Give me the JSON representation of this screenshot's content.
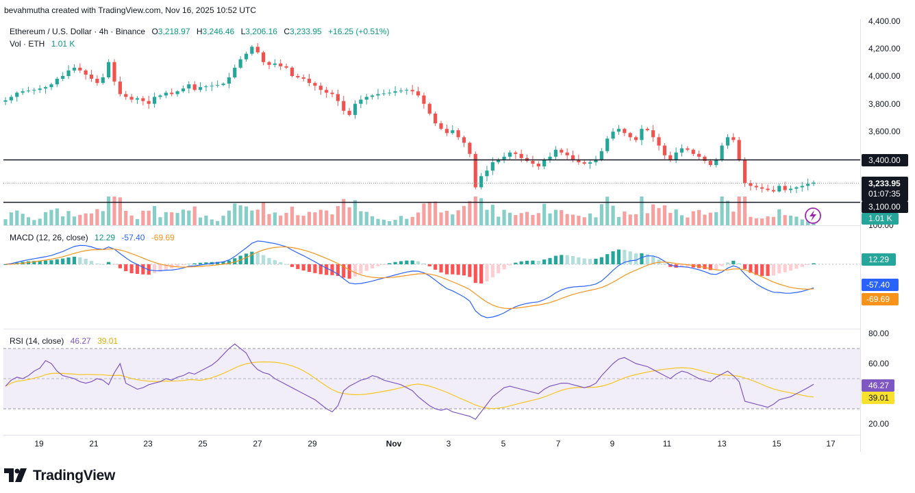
{
  "credit": "bevahmutha created with TradingView.com, Nov 16, 2025 10:52 UTC",
  "legend": {
    "symbol": "Ethereum / U.S. Dollar · 4h · Binance",
    "open_label": "O",
    "open": "3,218.97",
    "high_label": "H",
    "high": "3,246.46",
    "low_label": "L",
    "low": "3,206.16",
    "close_label": "C",
    "close": "3,233.95",
    "change": "+16.25 (+0.51%)",
    "vol_label": "Vol · ETH",
    "vol": "1.01 K"
  },
  "macd_legend": {
    "label": "MACD (12, 26, close)",
    "hist": "12.29",
    "macd": "-57.40",
    "signal": "-69.69"
  },
  "rsi_legend": {
    "label": "RSI (14, close)",
    "rsi": "46.27",
    "ma": "39.01"
  },
  "price_axis": {
    "ticks": [
      "4,400.00",
      "4,200.00",
      "4,000.00",
      "3,800.00",
      "3,600.00",
      "3,400.00",
      "3,100.00"
    ],
    "partial_tick": "100.00"
  },
  "price_tags": {
    "level_3400": "3,400.00",
    "last_price": "3,233.95",
    "countdown": "01:07:35",
    "level_3100": "3,100.00",
    "volume": "1.01 K"
  },
  "macd_tags": {
    "hist": "12.29",
    "macd": "-57.40",
    "signal": "-69.69"
  },
  "rsi_axis": {
    "ticks": [
      "80.00",
      "60.00",
      "20.00"
    ],
    "rsi_tag": "46.27",
    "ma_tag": "39.01"
  },
  "time_axis": [
    "19",
    "21",
    "23",
    "25",
    "27",
    "29",
    "Nov",
    "3",
    "5",
    "7",
    "9",
    "11",
    "13",
    "15",
    "17"
  ],
  "brand": "TradingView",
  "colors": {
    "up": "#26a69a",
    "down": "#ef5350",
    "macd": "#2962ff",
    "signal": "#f7931a",
    "rsi": "#7e57c2",
    "rsi_ma": "#f7c51e",
    "bg": "#ffffff"
  },
  "chart_data": {
    "type": "candlestick",
    "timeframe": "4h",
    "x_start": "Oct 18",
    "x_end": "Nov 16",
    "price": {
      "close": [
        3825,
        3850,
        3880,
        3890,
        3895,
        3900,
        3910,
        3920,
        3940,
        3980,
        4000,
        4040,
        4060,
        4040,
        4010,
        3980,
        3950,
        3990,
        4100,
        3960,
        3870,
        3850,
        3830,
        3840,
        3820,
        3800,
        3850,
        3860,
        3880,
        3870,
        3890,
        3910,
        3940,
        3900,
        3920,
        3925,
        3930,
        3935,
        3945,
        3990,
        4060,
        4120,
        4160,
        4210,
        4170,
        4100,
        4080,
        4090,
        4070,
        4060,
        4000,
        3990,
        3980,
        3950,
        3930,
        3900,
        3880,
        3870,
        3820,
        3750,
        3720,
        3800,
        3830,
        3850,
        3860,
        3870,
        3875,
        3880,
        3890,
        3895,
        3900,
        3890,
        3860,
        3800,
        3730,
        3660,
        3620,
        3590,
        3610,
        3560,
        3520,
        3440,
        3200,
        3280,
        3320,
        3380,
        3400,
        3420,
        3450,
        3440,
        3410,
        3390,
        3370,
        3350,
        3400,
        3420,
        3470,
        3450,
        3430,
        3400,
        3380,
        3370,
        3380,
        3400,
        3460,
        3550,
        3600,
        3620,
        3590,
        3560,
        3540,
        3620,
        3610,
        3560,
        3500,
        3430,
        3400,
        3450,
        3480,
        3470,
        3440,
        3420,
        3390,
        3360,
        3400,
        3500,
        3560,
        3540,
        3400,
        3230,
        3210,
        3200,
        3190,
        3180,
        3170,
        3210,
        3180,
        3190,
        3200,
        3210,
        3225,
        3234
      ],
      "y_ticks": [
        4400,
        4200,
        4000,
        3800,
        3600,
        3400,
        3100
      ],
      "horizontal_levels": [
        3400,
        3100
      ]
    },
    "volume_last": "1.01 K",
    "macd": {
      "fast": 12,
      "slow": 26,
      "histogram_last": 12.29,
      "macd_last": -57.4,
      "signal_last": -69.69
    },
    "rsi": {
      "length": 14,
      "values": [
        45,
        49,
        51,
        50,
        52,
        55,
        57,
        62,
        60,
        55,
        52,
        51,
        50,
        48,
        47,
        48,
        50,
        49,
        46,
        54,
        60,
        47,
        45,
        43,
        44,
        46,
        47,
        48,
        50,
        49,
        51,
        52,
        54,
        53,
        55,
        57,
        59,
        62,
        66,
        70,
        73,
        70,
        67,
        60,
        56,
        54,
        53,
        50,
        48,
        46,
        44,
        42,
        40,
        38,
        36,
        33,
        30,
        28,
        32,
        42,
        45,
        47,
        49,
        50,
        52,
        51,
        49,
        48,
        47,
        46,
        44,
        42,
        38,
        35,
        32,
        30,
        29,
        30,
        28,
        27,
        26,
        25,
        23,
        28,
        33,
        38,
        41,
        44,
        45,
        44,
        43,
        42,
        41,
        40,
        43,
        45,
        46,
        47,
        47,
        46,
        45,
        44,
        45,
        47,
        52,
        56,
        60,
        63,
        64,
        62,
        60,
        59,
        58,
        56,
        54,
        52,
        50,
        53,
        55,
        54,
        52,
        50,
        49,
        48,
        51,
        53,
        55,
        52,
        48,
        35,
        34,
        33,
        32,
        31,
        33,
        36,
        37,
        38,
        40,
        42,
        44,
        46.27
      ],
      "ma_last": 39.01,
      "y_ticks": [
        80,
        60,
        20
      ],
      "bands": [
        70,
        50,
        30
      ]
    }
  }
}
